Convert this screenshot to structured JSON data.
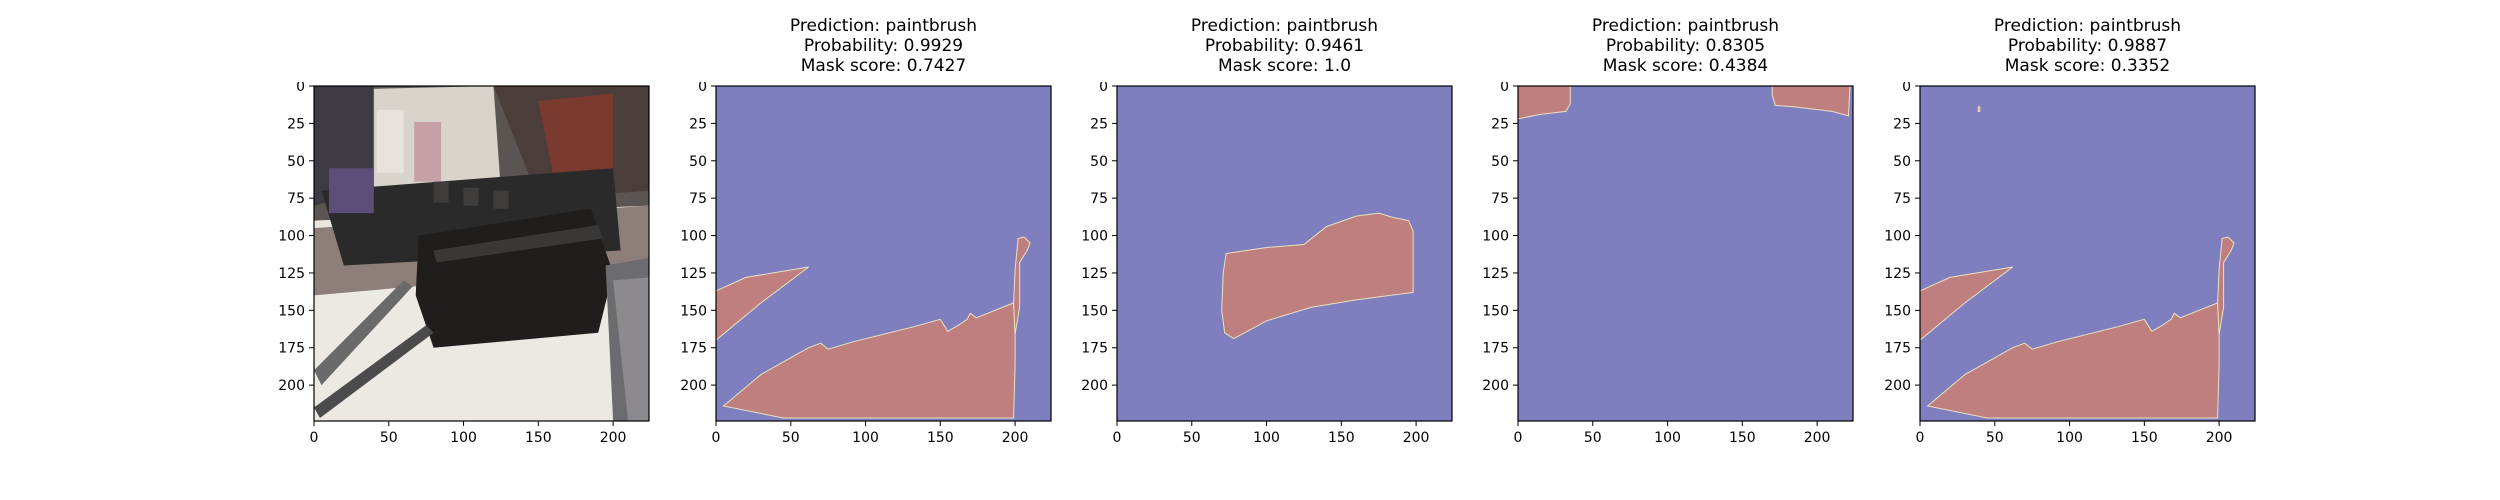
{
  "colors": {
    "mask_background": "#7f7fc0",
    "mask_region": "#bf7f7f",
    "mask_edge": "#e9e2c0",
    "axis": "#000000"
  },
  "chart_data": [
    {
      "type": "image",
      "title_lines": [],
      "xticks": [
        0,
        50,
        100,
        150,
        200
      ],
      "yticks": [
        0,
        25,
        50,
        75,
        100,
        125,
        150,
        175,
        200
      ],
      "xlim": [
        0,
        224
      ],
      "ylim": [
        224,
        0
      ],
      "image": "photo of a model steam locomotive and tender on a workbench with paintbrushes"
    },
    {
      "type": "mask",
      "title_lines": [
        "Prediction: paintbrush",
        "Probability: 0.9929",
        "Mask score: 0.7427"
      ],
      "prediction": "paintbrush",
      "probability": 0.9929,
      "mask_score": 0.7427,
      "xticks": [
        0,
        50,
        100,
        150,
        200
      ],
      "yticks": [
        0,
        25,
        50,
        75,
        100,
        125,
        150,
        175,
        200
      ],
      "xlim": [
        0,
        224
      ],
      "ylim": [
        224,
        0
      ],
      "regions": [
        [
          [
            0,
            137
          ],
          [
            20,
            128
          ],
          [
            62,
            121
          ],
          [
            30,
            145
          ],
          [
            0,
            170
          ]
        ],
        [
          [
            5,
            214
          ],
          [
            30,
            193
          ],
          [
            62,
            175
          ],
          [
            70,
            172
          ],
          [
            75,
            176
          ],
          [
            92,
            171
          ],
          [
            132,
            161
          ],
          [
            150,
            156
          ],
          [
            155,
            164
          ],
          [
            162,
            160
          ],
          [
            168,
            156
          ],
          [
            170,
            152
          ],
          [
            174,
            155
          ],
          [
            199,
            145
          ],
          [
            200,
            165
          ],
          [
            200,
            186
          ],
          [
            199,
            222
          ],
          [
            86,
            222
          ],
          [
            45,
            222
          ]
        ],
        [
          [
            199,
            145
          ],
          [
            200,
            123
          ],
          [
            202,
            102
          ],
          [
            206,
            101
          ],
          [
            210,
            105
          ],
          [
            208,
            110
          ],
          [
            203,
            118
          ],
          [
            203,
            148
          ],
          [
            200,
            166
          ]
        ]
      ]
    },
    {
      "type": "mask",
      "title_lines": [
        "Prediction: paintbrush",
        "Probability: 0.9461",
        "Mask score: 1.0"
      ],
      "prediction": "paintbrush",
      "probability": 0.9461,
      "mask_score": 1.0,
      "xticks": [
        0,
        50,
        100,
        150,
        200
      ],
      "yticks": [
        0,
        25,
        50,
        75,
        100,
        125,
        150,
        175,
        200
      ],
      "xlim": [
        0,
        224
      ],
      "ylim": [
        224,
        0
      ],
      "regions": [
        [
          [
            73,
            112
          ],
          [
            100,
            108
          ],
          [
            125,
            106
          ],
          [
            140,
            94
          ],
          [
            160,
            87
          ],
          [
            175,
            85
          ],
          [
            185,
            88
          ],
          [
            195,
            90
          ],
          [
            198,
            97
          ],
          [
            198,
            138
          ],
          [
            160,
            143
          ],
          [
            130,
            148
          ],
          [
            100,
            157
          ],
          [
            78,
            169
          ],
          [
            72,
            165
          ],
          [
            70,
            150
          ],
          [
            71,
            125
          ]
        ]
      ]
    },
    {
      "type": "mask",
      "title_lines": [
        "Prediction: paintbrush",
        "Probability: 0.8305",
        "Mask score: 0.4384"
      ],
      "prediction": "paintbrush",
      "probability": 0.8305,
      "mask_score": 0.4384,
      "xticks": [
        0,
        50,
        100,
        150,
        200
      ],
      "yticks": [
        0,
        25,
        50,
        75,
        100,
        125,
        150,
        175,
        200
      ],
      "xlim": [
        0,
        224
      ],
      "ylim": [
        224,
        0
      ],
      "regions": [
        [
          [
            0,
            0
          ],
          [
            35,
            0
          ],
          [
            35,
            12
          ],
          [
            32,
            17
          ],
          [
            15,
            19
          ],
          [
            0,
            22
          ]
        ],
        [
          [
            170,
            0
          ],
          [
            222,
            0
          ],
          [
            221,
            20
          ],
          [
            210,
            17
          ],
          [
            185,
            14
          ],
          [
            172,
            13
          ],
          [
            170,
            6
          ]
        ]
      ]
    },
    {
      "type": "mask",
      "title_lines": [
        "Prediction: paintbrush",
        "Probability: 0.9887",
        "Mask score: 0.3352"
      ],
      "prediction": "paintbrush",
      "probability": 0.9887,
      "mask_score": 0.3352,
      "xticks": [
        0,
        50,
        100,
        150,
        200
      ],
      "yticks": [
        0,
        25,
        50,
        75,
        100,
        125,
        150,
        175,
        200
      ],
      "xlim": [
        0,
        224
      ],
      "ylim": [
        224,
        0
      ],
      "regions": [
        [
          [
            0,
            137
          ],
          [
            20,
            128
          ],
          [
            62,
            121
          ],
          [
            30,
            145
          ],
          [
            0,
            170
          ]
        ],
        [
          [
            5,
            214
          ],
          [
            30,
            193
          ],
          [
            62,
            175
          ],
          [
            70,
            172
          ],
          [
            75,
            176
          ],
          [
            92,
            171
          ],
          [
            132,
            161
          ],
          [
            150,
            156
          ],
          [
            155,
            164
          ],
          [
            162,
            160
          ],
          [
            168,
            156
          ],
          [
            170,
            152
          ],
          [
            174,
            155
          ],
          [
            199,
            145
          ],
          [
            200,
            165
          ],
          [
            200,
            186
          ],
          [
            199,
            222
          ],
          [
            86,
            222
          ],
          [
            45,
            222
          ]
        ],
        [
          [
            199,
            145
          ],
          [
            200,
            123
          ],
          [
            202,
            102
          ],
          [
            206,
            101
          ],
          [
            210,
            105
          ],
          [
            208,
            110
          ],
          [
            203,
            118
          ],
          [
            203,
            148
          ],
          [
            200,
            166
          ]
        ],
        [
          [
            39,
            14
          ],
          [
            40,
            14
          ],
          [
            40,
            17
          ],
          [
            39,
            17
          ]
        ]
      ]
    }
  ]
}
